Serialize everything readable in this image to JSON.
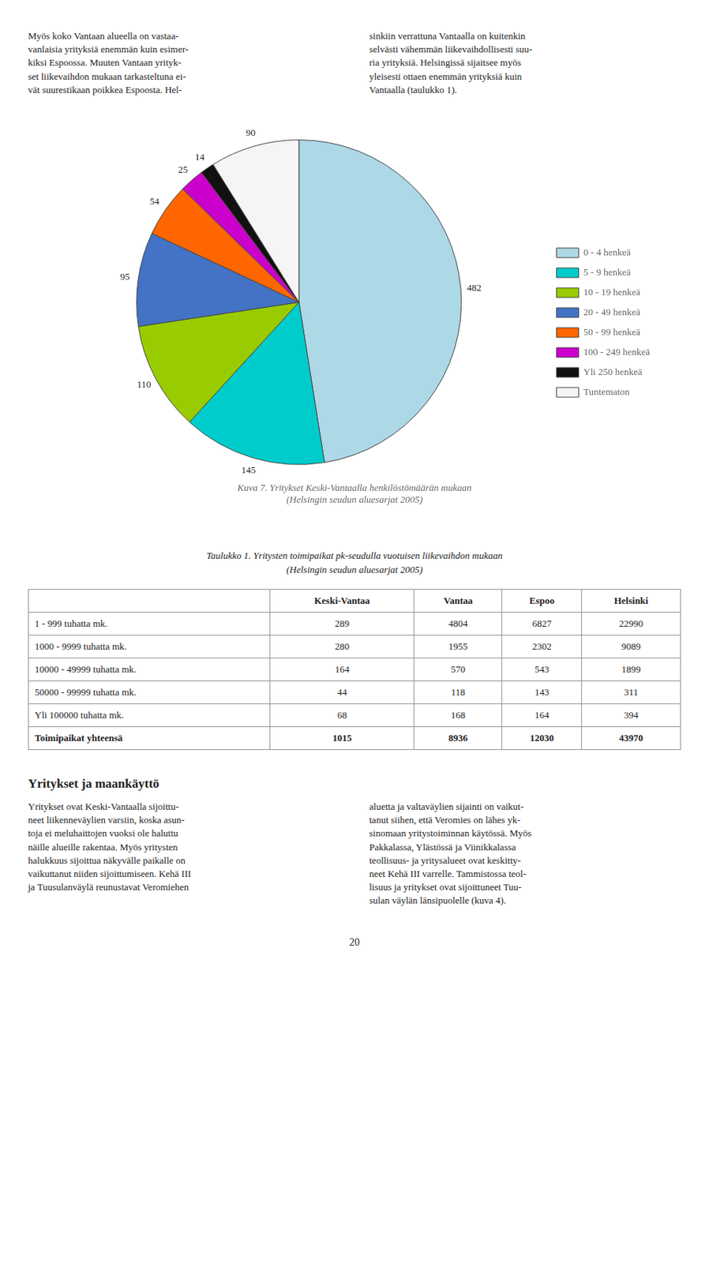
{
  "chart_data": [
    {
      "type": "pie",
      "title": "Kuva 7. Yritykset Keski-Vantaalla henkilöstömäärän mukaan\n(Helsingin seudun aluesarjat 2005)",
      "categories": [
        "0 - 4 henkeä",
        "5 - 9 henkeä",
        "10 - 19 henkeä",
        "20 - 49 henkeä",
        "50 - 99 henkeä",
        "100 - 249 henkeä",
        "Yli 250 henkeä",
        "Tuntematon"
      ],
      "values": [
        482,
        145,
        110,
        95,
        54,
        25,
        14,
        90
      ],
      "colors": [
        "#ADD8E6",
        "#00CCCC",
        "#99CC00",
        "#4472C4",
        "#FF6600",
        "#CC00CC",
        "#111111",
        "#F5F5F5"
      ],
      "data_labels": true,
      "legend": "right",
      "annotations": [
        "Myös koko Vantaan alueella on vastaa-\nvanlaisia yrityksiä enemmän kuin esimer-\nkiksi Espoossa. Muuten Vantaan yrityk-\nset liikevaihdon mukaan tarkasteltuna ei-\nvät suurestikaan poikkea Espoosta. Hel-",
        "sinkiin verrattuna Vantaalla on kuitenkin\nselvästi vähemmän liikevaihdollisesti suu-\nria yrityksiä. Helsingissä sijaitsee myös\nyleisesti ottaen enemmän yrityksiä kuin\nVantaalla (taulukko 1).",
        "Yritykset ja maankäyttö",
        "Yritykset ovat Keski-Vantaalla sijoittu-\nneet liikenneväylien varsiin, koska asun-\ntoja ei meluhaittojen vuoksi ole haluttu\nnäille alueille rakentaa. Myös yritysten\nhalukkuus sijoittua näkyvälle paikalle on\nvaikuttanut niiden sijoittumiseen. Kehä III\nja Tuusulanväylä reunustavat Veromiehen",
        "aluetta ja valtaväylien sijainti on vaikut-\ntanut siihen, että Veromies on lähes yk-\nsinomaan yritystoiminnan käytössä. Myös\nPakkalassa, Ylästössä ja Viinikkalassa\nteollisuus- ja yritysalueet ovat keskitty-\nneet Kehä III varrelle. Tammistossa teol-\nlisuus ja yritykset ovat sijoittuneet Tuu-\nsulan väylän länsipuolelle (kuva 4).",
        "20"
      ]
    },
    {
      "type": "table",
      "title": "Taulukko 1. Yritysten toimipaikat pk-seudulla vuotuisen liikevaihdon mukaan\n(Helsingin seudun aluesarjat 2005)",
      "columns": [
        null,
        "Keski-Vantaa",
        "Vantaa",
        "Espoo",
        "Helsinki"
      ],
      "rows": [
        [
          "1 - 999 tuhatta mk.",
          289,
          4804,
          6827,
          22990
        ],
        [
          "1000 - 9999 tuhatta mk.",
          280,
          1955,
          2302,
          9089
        ],
        [
          "10000 - 49999 tuhatta mk.",
          164,
          570,
          543,
          1899
        ],
        [
          "50000 - 99999 tuhatta mk.",
          44,
          118,
          143,
          311
        ],
        [
          "Yli 100000 tuhatta mk.",
          68,
          168,
          164,
          394
        ],
        [
          "Toimipaikat yhteensä",
          1015,
          8936,
          12030,
          43970
        ]
      ]
    }
  ]
}
